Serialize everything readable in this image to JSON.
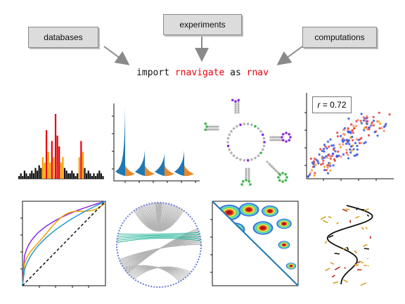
{
  "labels": {
    "databases": "databases",
    "experiments": "experiments",
    "computations": "computations"
  },
  "code": {
    "import_kw": "import",
    "module": "rnavigate",
    "as_kw": "as",
    "alias": "rnav"
  },
  "scatter": {
    "r_symbol": "r",
    "r_value": "= 0.72"
  },
  "colors": {
    "red": "#e8000b",
    "orange": "#f5a000",
    "black": "#111111",
    "blue": "#1f77b4",
    "violin_orange": "#e6882a",
    "green": "#3cb44b",
    "purple": "#8a2be2",
    "teal": "#2ab59a",
    "gray": "#b4b4b4"
  },
  "chart_data": [
    {
      "type": "bar",
      "name": "profile-bars",
      "values": [
        1,
        2,
        1,
        3,
        2,
        1,
        2,
        3,
        2,
        4,
        3,
        5,
        4,
        8,
        6,
        18,
        10,
        6,
        14,
        8,
        24,
        16,
        12,
        6,
        8,
        4,
        3,
        2,
        2,
        3,
        2,
        1,
        2,
        8,
        14,
        10,
        4,
        2,
        3,
        2,
        1,
        2,
        1,
        2,
        3,
        2,
        1
      ],
      "color_classes": [
        "k",
        "k",
        "k",
        "k",
        "k",
        "k",
        "k",
        "k",
        "k",
        "k",
        "k",
        "k",
        "k",
        "o",
        "o",
        "r",
        "o",
        "o",
        "r",
        "o",
        "r",
        "r",
        "r",
        "o",
        "o",
        "k",
        "k",
        "k",
        "k",
        "k",
        "k",
        "k",
        "k",
        "o",
        "r",
        "o",
        "k",
        "k",
        "k",
        "k",
        "k",
        "k",
        "k",
        "k",
        "k",
        "k",
        "k"
      ]
    },
    {
      "type": "violin",
      "name": "violins",
      "series": [
        {
          "name": "",
          "height": 1.0
        },
        {
          "name": "",
          "height": 0.35
        },
        {
          "name": "",
          "height": 0.3
        },
        {
          "name": "",
          "height": 0.35
        }
      ]
    },
    {
      "type": "scatter",
      "name": "scatter",
      "r": 0.72
    },
    {
      "type": "line",
      "name": "roc",
      "series": [
        {
          "name": "",
          "color": "#8a2be2"
        },
        {
          "name": "",
          "color": "#f5a000"
        },
        {
          "name": "",
          "color": "#1f9bd4"
        },
        {
          "name": "",
          "color": "#111111",
          "dashed": true
        }
      ]
    }
  ]
}
